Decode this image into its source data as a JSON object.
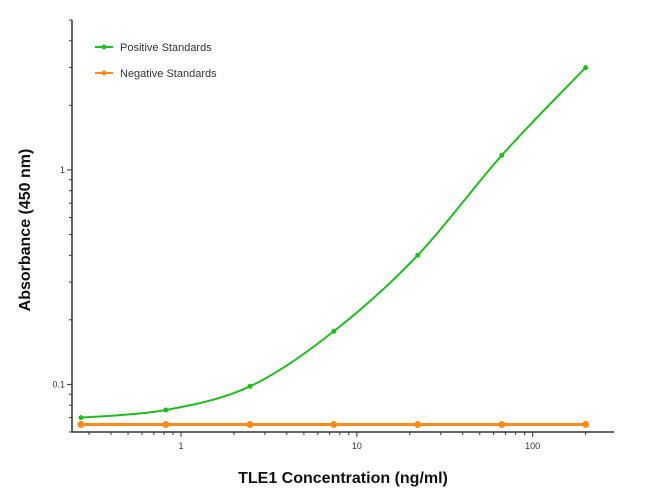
{
  "chart_data": {
    "type": "line",
    "title": "",
    "xlabel": "TLE1 Concentration (ng/ml)",
    "ylabel": "Absorbance (450 nm)",
    "xscale": "log",
    "yscale": "log",
    "xlim": [
      0.24,
      290
    ],
    "ylim": [
      0.06,
      5
    ],
    "xticks": [
      {
        "value": 1,
        "label": "1"
      },
      {
        "value": 10,
        "label": "10"
      },
      {
        "value": 100,
        "label": "100"
      }
    ],
    "yticks": [
      {
        "value": 0.1,
        "label": "0.1"
      },
      {
        "value": 1,
        "label": "1"
      }
    ],
    "grid": false,
    "legend_position": "top-left",
    "series": [
      {
        "name": "Positive Standards",
        "color": "#22bb22",
        "x": [
          0.27,
          0.82,
          2.47,
          7.4,
          22.2,
          66.7,
          200
        ],
        "y": [
          0.07,
          0.076,
          0.098,
          0.177,
          0.4,
          1.17,
          3.0
        ]
      },
      {
        "name": "Negative Standards",
        "color": "#ff8c1a",
        "x": [
          0.27,
          0.82,
          2.47,
          7.4,
          22.2,
          66.7,
          200
        ],
        "y": [
          0.065,
          0.065,
          0.065,
          0.065,
          0.065,
          0.065,
          0.065
        ]
      }
    ]
  }
}
